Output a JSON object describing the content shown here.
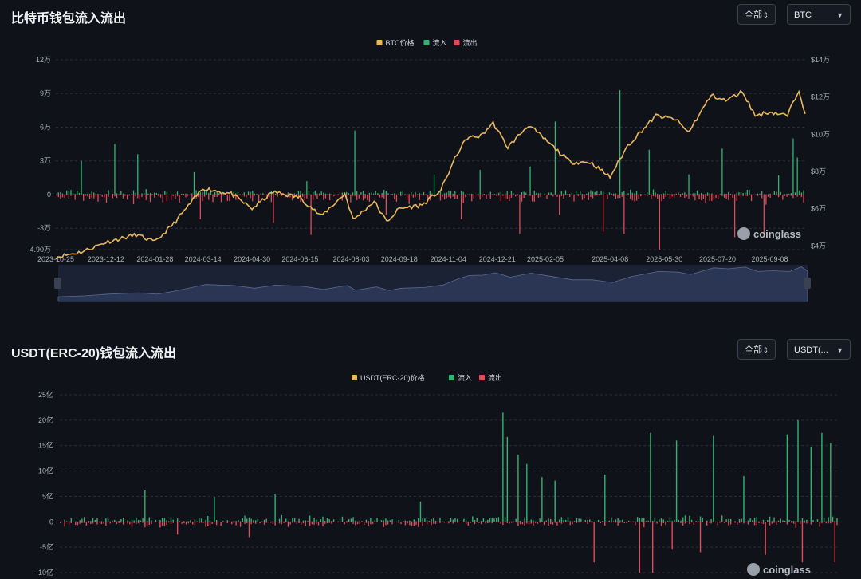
{
  "btc_section": {
    "title": "比特币钱包流入流出",
    "range_select": "全部",
    "coin_select": "BTC",
    "watermark": "coinglass"
  },
  "usdt_section": {
    "title": "USDT(ERC-20)钱包流入流出",
    "range_select": "全部",
    "coin_select": "USDT(...",
    "watermark": "coinglass"
  },
  "icons": {
    "select_arrow": "chevron-down-icon",
    "stepper_arrow": "updown-icon",
    "watermark_logo": "coinglass-logo-icon"
  },
  "colors": {
    "price": "#e8b85e",
    "inflow": "#2fb573",
    "outflow": "#e04a5a",
    "grid": "#2a2f3a",
    "axis_text": "#aab0bb",
    "navigator": "#2a3654"
  },
  "chart_data": [
    {
      "type": "bar",
      "legend": [
        "BTC价格",
        "流入",
        "流出"
      ],
      "legend_position": "top-center",
      "x_ticks": [
        "2023-10-25",
        "2023-12-12",
        "2024-01-28",
        "2024-03-14",
        "2024-04-30",
        "2024-06-15",
        "2024-08-03",
        "2024-09-18",
        "2024-11-04",
        "2024-12-21",
        "2025-02-05",
        "2025-04-08",
        "2025-05-30",
        "2025-07-20",
        "2025-09-08"
      ],
      "y_left_ticks": [
        "12万",
        "9万",
        "6万",
        "3万",
        "0",
        "-3万",
        "-4.90万"
      ],
      "y_left_values": [
        120000,
        90000,
        60000,
        30000,
        0,
        -30000,
        -49000
      ],
      "y_right_ticks": [
        "$14万",
        "$12万",
        "$10万",
        "$8万",
        "$6万",
        "$4万"
      ],
      "y_right_values": [
        140000,
        120000,
        100000,
        80000,
        60000,
        40000
      ],
      "ylim_left": [
        -49000,
        120000
      ],
      "ylim_right": [
        38000,
        140000
      ],
      "grid": true,
      "price_line": [
        [
          "2023-10-25",
          34000
        ],
        [
          "2023-11-20",
          37000
        ],
        [
          "2023-12-12",
          42000
        ],
        [
          "2024-01-10",
          46000
        ],
        [
          "2024-01-28",
          42000
        ],
        [
          "2024-02-15",
          52000
        ],
        [
          "2024-03-14",
          71000
        ],
        [
          "2024-04-10",
          68000
        ],
        [
          "2024-04-30",
          60000
        ],
        [
          "2024-05-20",
          69000
        ],
        [
          "2024-06-15",
          66000
        ],
        [
          "2024-07-05",
          56000
        ],
        [
          "2024-07-28",
          68000
        ],
        [
          "2024-08-05",
          54000
        ],
        [
          "2024-08-25",
          64000
        ],
        [
          "2024-09-06",
          53000
        ],
        [
          "2024-09-18",
          60000
        ],
        [
          "2024-10-10",
          62000
        ],
        [
          "2024-10-28",
          70000
        ],
        [
          "2024-11-12",
          89000
        ],
        [
          "2024-11-22",
          98000
        ],
        [
          "2024-12-05",
          99000
        ],
        [
          "2024-12-17",
          106000
        ],
        [
          "2024-12-31",
          93000
        ],
        [
          "2025-01-20",
          105000
        ],
        [
          "2025-02-05",
          97000
        ],
        [
          "2025-03-01",
          85000
        ],
        [
          "2025-03-20",
          85000
        ],
        [
          "2025-04-08",
          77000
        ],
        [
          "2025-04-25",
          94000
        ],
        [
          "2025-05-22",
          110000
        ],
        [
          "2025-06-10",
          108000
        ],
        [
          "2025-06-22",
          101000
        ],
        [
          "2025-07-14",
          121000
        ],
        [
          "2025-07-28",
          118000
        ],
        [
          "2025-08-13",
          123000
        ],
        [
          "2025-08-25",
          110000
        ],
        [
          "2025-09-08",
          112000
        ],
        [
          "2025-09-25",
          110000
        ],
        [
          "2025-10-06",
          124000
        ],
        [
          "2025-10-12",
          111000
        ]
      ],
      "inflow_spikes": [
        [
          "2023-11-17",
          30000
        ],
        [
          "2023-12-20",
          45000
        ],
        [
          "2024-01-10",
          36000
        ],
        [
          "2024-03-05",
          20000
        ],
        [
          "2024-06-20",
          12000
        ],
        [
          "2024-08-05",
          57000
        ],
        [
          "2024-10-20",
          18000
        ],
        [
          "2024-12-03",
          22000
        ],
        [
          "2025-01-20",
          25000
        ],
        [
          "2025-02-14",
          65000
        ],
        [
          "2025-04-17",
          93000
        ],
        [
          "2025-05-14",
          40000
        ],
        [
          "2025-06-22",
          18000
        ],
        [
          "2025-07-23",
          41000
        ],
        [
          "2025-09-16",
          17000
        ],
        [
          "2025-09-30",
          50000
        ],
        [
          "2025-10-03",
          33000
        ]
      ],
      "outflow_spikes": [
        [
          "2024-03-10",
          -22000
        ],
        [
          "2024-05-20",
          -25000
        ],
        [
          "2024-06-25",
          -36000
        ],
        [
          "2024-09-05",
          -18000
        ],
        [
          "2024-11-15",
          -22000
        ],
        [
          "2025-01-10",
          -35000
        ],
        [
          "2025-02-18",
          -18000
        ],
        [
          "2025-04-01",
          -33000
        ],
        [
          "2025-04-20",
          -35000
        ],
        [
          "2025-05-25",
          -49000
        ],
        [
          "2025-08-05",
          -38000
        ],
        [
          "2025-09-02",
          -35000
        ]
      ],
      "noise_amplitude_in": 5000,
      "noise_amplitude_out": 9000
    },
    {
      "type": "bar",
      "legend": [
        "USDT(ERC-20)价格",
        "流入",
        "流出"
      ],
      "legend_position": "top-center",
      "y_left_ticks": [
        "25亿",
        "20亿",
        "15亿",
        "10亿",
        "5亿",
        "0",
        "-5亿",
        "-10亿"
      ],
      "y_left_values": [
        2500000000,
        2000000000,
        1500000000,
        1000000000,
        500000000,
        0,
        -500000000,
        -1000000000
      ],
      "ylim_left": [
        -1000000000,
        2500000000
      ],
      "grid": true,
      "inflow_spikes": [
        [
          "2024-01-10",
          620000000
        ],
        [
          "2024-03-14",
          490000000
        ],
        [
          "2024-05-10",
          540000000
        ],
        [
          "2024-09-20",
          400000000
        ],
        [
          "2024-12-06",
          2150000000
        ],
        [
          "2024-12-10",
          1670000000
        ],
        [
          "2024-12-20",
          1320000000
        ],
        [
          "2024-12-28",
          1140000000
        ],
        [
          "2025-01-10",
          880000000
        ],
        [
          "2025-01-22",
          810000000
        ],
        [
          "2025-03-10",
          930000000
        ],
        [
          "2025-04-20",
          1750000000
        ],
        [
          "2025-05-15",
          1600000000
        ],
        [
          "2025-06-18",
          1690000000
        ],
        [
          "2025-07-15",
          900000000
        ],
        [
          "2025-08-24",
          1720000000
        ],
        [
          "2025-09-04",
          2000000000
        ],
        [
          "2025-09-16",
          1480000000
        ],
        [
          "2025-09-25",
          1750000000
        ],
        [
          "2025-10-03",
          1550000000
        ],
        [
          "2025-10-11",
          970000000
        ],
        [
          "2025-10-14",
          760000000
        ]
      ],
      "outflow_spikes": [
        [
          "2024-02-10",
          -250000000
        ],
        [
          "2024-04-15",
          -300000000
        ],
        [
          "2025-02-28",
          -800000000
        ],
        [
          "2025-04-10",
          -1000000000
        ],
        [
          "2025-04-22",
          -1000000000
        ],
        [
          "2025-05-10",
          -550000000
        ],
        [
          "2025-06-05",
          -600000000
        ],
        [
          "2025-08-05",
          -650000000
        ],
        [
          "2025-09-08",
          -800000000
        ],
        [
          "2025-10-07",
          -800000000
        ]
      ],
      "noise_amplitude_in": 140000000,
      "noise_amplitude_out": 120000000
    }
  ]
}
